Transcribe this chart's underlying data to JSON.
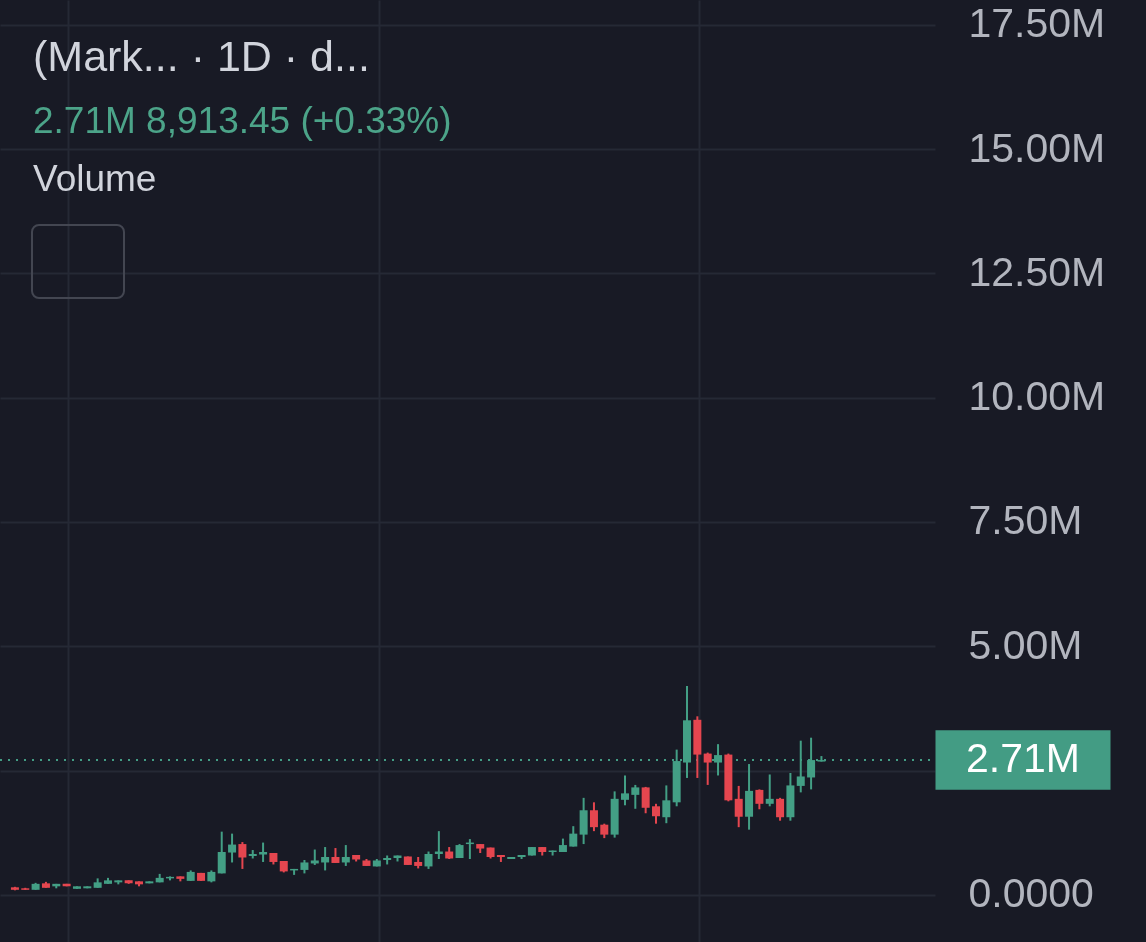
{
  "chart_data": {
    "type": "candlestick",
    "title": "(Mark... · 1D · d...",
    "subtitle": "2.71M 8,913.45 (+0.33%)",
    "annotations": [
      "Volume"
    ],
    "categories": [
      null,
      null,
      null,
      null,
      null,
      null,
      null,
      null,
      null,
      null,
      null,
      null,
      null,
      null,
      null,
      null,
      null,
      null,
      null,
      null,
      null,
      null,
      null,
      null,
      null,
      null,
      null,
      null,
      null,
      null,
      null,
      null,
      null,
      null,
      null,
      null,
      null,
      null,
      null,
      null,
      null,
      null,
      null,
      null,
      null,
      null,
      null,
      null,
      null,
      null,
      null,
      null,
      null,
      null,
      null,
      null,
      null,
      null,
      null,
      null,
      null,
      null,
      null,
      null,
      null,
      null,
      null,
      null,
      null,
      null,
      null,
      null,
      null,
      null,
      null,
      null,
      null,
      null,
      null
    ],
    "ohlc": [
      [
        0.15,
        0.16,
        0.09,
        0.1
      ],
      [
        0.13,
        0.14,
        0.1,
        0.1
      ],
      [
        0.1,
        0.24,
        0.1,
        0.22
      ],
      [
        0.23,
        0.26,
        0.14,
        0.14
      ],
      [
        0.17,
        0.22,
        0.13,
        0.22
      ],
      [
        0.22,
        0.22,
        0.17,
        0.17
      ],
      [
        0.12,
        0.17,
        0.12,
        0.17
      ],
      [
        0.13,
        0.17,
        0.13,
        0.17
      ],
      [
        0.14,
        0.33,
        0.14,
        0.25
      ],
      [
        0.22,
        0.34,
        0.22,
        0.29
      ],
      [
        0.25,
        0.29,
        0.21,
        0.29
      ],
      [
        0.29,
        0.29,
        0.22,
        0.23
      ],
      [
        0.27,
        0.27,
        0.17,
        0.21
      ],
      [
        0.23,
        0.27,
        0.23,
        0.27
      ],
      [
        0.25,
        0.42,
        0.25,
        0.34
      ],
      [
        0.33,
        0.37,
        0.29,
        0.36
      ],
      [
        0.37,
        0.37,
        0.27,
        0.32
      ],
      [
        0.28,
        0.49,
        0.28,
        0.46
      ],
      [
        0.44,
        0.44,
        0.28,
        0.28
      ],
      [
        0.27,
        0.49,
        0.25,
        0.46
      ],
      [
        0.43,
        1.27,
        0.43,
        0.86
      ],
      [
        0.85,
        1.23,
        0.65,
        1.01
      ],
      [
        1.02,
        1.06,
        0.52,
        0.75
      ],
      [
        0.78,
        0.9,
        0.73,
        0.82
      ],
      [
        0.81,
        1.05,
        0.66,
        0.86
      ],
      [
        0.84,
        0.84,
        0.61,
        0.66
      ],
      [
        0.68,
        0.68,
        0.45,
        0.47
      ],
      [
        0.49,
        0.52,
        0.4,
        0.52
      ],
      [
        0.5,
        0.7,
        0.43,
        0.65
      ],
      [
        0.63,
        0.91,
        0.6,
        0.69
      ],
      [
        0.65,
        0.96,
        0.49,
        0.76
      ],
      [
        0.76,
        0.94,
        0.64,
        0.64
      ],
      [
        0.65,
        1.0,
        0.58,
        0.76
      ],
      [
        0.8,
        0.8,
        0.67,
        0.71
      ],
      [
        0.69,
        0.72,
        0.58,
        0.58
      ],
      [
        0.57,
        0.72,
        0.57,
        0.69
      ],
      [
        0.7,
        0.79,
        0.61,
        0.74
      ],
      [
        0.74,
        0.79,
        0.67,
        0.79
      ],
      [
        0.77,
        0.77,
        0.6,
        0.6
      ],
      [
        0.66,
        0.76,
        0.53,
        0.58
      ],
      [
        0.57,
        0.87,
        0.52,
        0.82
      ],
      [
        0.82,
        1.28,
        0.72,
        0.87
      ],
      [
        0.87,
        0.96,
        0.72,
        0.73
      ],
      [
        0.74,
        1.02,
        0.74,
        1.0
      ],
      [
        1.02,
        1.12,
        0.72,
        1.05
      ],
      [
        1.02,
        1.02,
        0.84,
        0.93
      ],
      [
        0.95,
        0.95,
        0.73,
        0.76
      ],
      [
        0.8,
        0.8,
        0.66,
        0.76
      ],
      [
        0.72,
        0.76,
        0.72,
        0.76
      ],
      [
        0.76,
        0.8,
        0.72,
        0.8
      ],
      [
        0.79,
        0.96,
        0.79,
        0.96
      ],
      [
        0.96,
        0.96,
        0.79,
        0.86
      ],
      [
        0.86,
        0.89,
        0.79,
        0.89
      ],
      [
        0.86,
        1.13,
        0.86,
        1.0
      ],
      [
        0.97,
        1.38,
        0.97,
        1.23
      ],
      [
        1.21,
        1.95,
        1.02,
        1.7
      ],
      [
        1.7,
        1.86,
        1.28,
        1.36
      ],
      [
        1.41,
        1.43,
        1.14,
        1.21
      ],
      [
        1.21,
        2.08,
        1.15,
        1.93
      ],
      [
        1.91,
        2.4,
        1.8,
        2.04
      ],
      [
        2.01,
        2.21,
        1.73,
        2.16
      ],
      [
        2.16,
        2.17,
        1.64,
        1.75
      ],
      [
        1.78,
        1.83,
        1.43,
        1.58
      ],
      [
        1.56,
        2.2,
        1.44,
        1.9
      ],
      [
        1.86,
        2.92,
        1.78,
        2.69
      ],
      [
        2.66,
        4.2,
        2.35,
        3.51
      ],
      [
        3.52,
        3.59,
        2.35,
        2.82
      ],
      [
        2.84,
        2.86,
        2.21,
        2.66
      ],
      [
        2.66,
        3.03,
        2.4,
        2.81
      ],
      [
        2.82,
        2.84,
        1.88,
        1.9
      ],
      [
        1.93,
        2.19,
        1.36,
        1.57
      ],
      [
        1.57,
        2.63,
        1.31,
        2.09
      ],
      [
        2.11,
        2.12,
        1.72,
        1.83
      ],
      [
        1.83,
        2.42,
        1.78,
        1.93
      ],
      [
        1.93,
        1.95,
        1.49,
        1.56
      ],
      [
        1.56,
        2.45,
        1.49,
        2.2
      ],
      [
        2.19,
        3.1,
        2.06,
        2.38
      ],
      [
        2.36,
        3.16,
        2.12,
        2.71
      ],
      [
        2.68,
        2.79,
        2.68,
        2.71
      ]
    ],
    "colors": [
      "#e5464f",
      "#e5464f",
      "#439f85",
      "#e5464f",
      "#439f85",
      "#e5464f",
      "#439f85",
      "#439f85",
      "#439f85",
      "#439f85",
      "#439f85",
      "#e5464f",
      "#e5464f",
      "#439f85",
      "#439f85",
      "#439f85",
      "#e5464f",
      "#439f85",
      "#e5464f",
      "#439f85",
      "#439f85",
      "#439f85",
      "#e5464f",
      "#439f85",
      "#439f85",
      "#e5464f",
      "#e5464f",
      "#439f85",
      "#439f85",
      "#439f85",
      "#439f85",
      "#e5464f",
      "#439f85",
      "#e5464f",
      "#e5464f",
      "#439f85",
      "#439f85",
      "#439f85",
      "#e5464f",
      "#e5464f",
      "#439f85",
      "#439f85",
      "#e5464f",
      "#439f85",
      "#439f85",
      "#e5464f",
      "#e5464f",
      "#e5464f",
      "#439f85",
      "#439f85",
      "#439f85",
      "#e5464f",
      "#439f85",
      "#439f85",
      "#439f85",
      "#439f85",
      "#e5464f",
      "#e5464f",
      "#439f85",
      "#439f85",
      "#439f85",
      "#e5464f",
      "#e5464f",
      "#439f85",
      "#439f85",
      "#439f85",
      "#e5464f",
      "#e5464f",
      "#439f85",
      "#e5464f",
      "#e5464f",
      "#439f85",
      "#e5464f",
      "#439f85",
      "#e5464f",
      "#439f85",
      "#439f85",
      "#439f85",
      "#439f85"
    ],
    "ylim": [
      -0.95,
      18
    ],
    "yticks": [
      {
        "value": 0,
        "label": "0.0000"
      },
      {
        "value": 2.5,
        "label": null
      },
      {
        "value": 5,
        "label": "5.00M"
      },
      {
        "value": 7.5,
        "label": "7.50M"
      },
      {
        "value": 10,
        "label": "10.00M"
      },
      {
        "value": 12.5,
        "label": "12.50M"
      },
      {
        "value": 15,
        "label": "15.00M"
      },
      {
        "value": 17.5,
        "label": "17.50M"
      }
    ],
    "ref_lines": [
      {
        "axis": "y",
        "value": 2.71,
        "label": "2.71M",
        "color": "#439c84",
        "line_style": "dotted"
      }
    ],
    "grid": true,
    "tick_labels": "y"
  }
}
